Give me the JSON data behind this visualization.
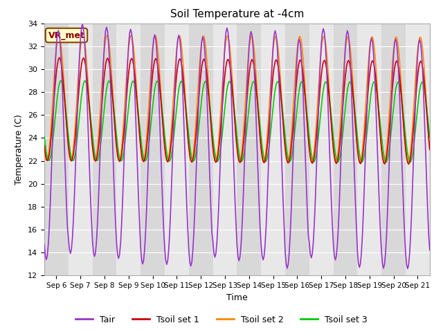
{
  "title": "Soil Temperature at -4cm",
  "xlabel": "Time",
  "ylabel": "Temperature (C)",
  "ylim": [
    12,
    34
  ],
  "xlim_days": [
    5.5,
    21.5
  ],
  "x_ticks_days": [
    6,
    7,
    8,
    9,
    10,
    11,
    12,
    13,
    14,
    15,
    16,
    17,
    18,
    19,
    20,
    21
  ],
  "x_tick_labels": [
    "Sep 6",
    "Sep 7",
    "Sep 8",
    "Sep 9",
    "Sep 10",
    "Sep 11",
    "Sep 12",
    "Sep 13",
    "Sep 14",
    "Sep 15",
    "Sep 16",
    "Sep 17",
    "Sep 18",
    "Sep 19",
    "Sep 20",
    "Sep 21"
  ],
  "yticks": [
    12,
    14,
    16,
    18,
    20,
    22,
    24,
    26,
    28,
    30,
    32,
    34
  ],
  "colors": {
    "Tair": "#9933cc",
    "Tsoil1": "#cc0000",
    "Tsoil2": "#ff8800",
    "Tsoil3": "#00cc00"
  },
  "legend_label": "VR_met",
  "legend_entries": [
    "Tair",
    "Tsoil set 1",
    "Tsoil set 2",
    "Tsoil set 3"
  ],
  "bg_light": "#e8e8e8",
  "bg_dark": "#d0d0d0",
  "fig_bg": "#ffffff",
  "line_width": 1.2,
  "Tair_mean": 23.5,
  "Tair_amp": 10.0,
  "Tsoil1_mean": 26.5,
  "Tsoil1_amp": 4.5,
  "Tsoil2_mean": 27.5,
  "Tsoil2_amp": 5.5,
  "Tsoil3_mean": 25.5,
  "Tsoil3_amp": 3.5,
  "peak_hour_Tair": 14.0,
  "peak_hour_Tsoil1": 15.0,
  "peak_hour_Tsoil2": 14.5,
  "peak_hour_Tsoil3": 16.5,
  "trough_Tair_min": 13.0,
  "cooling_trend": 0.04
}
